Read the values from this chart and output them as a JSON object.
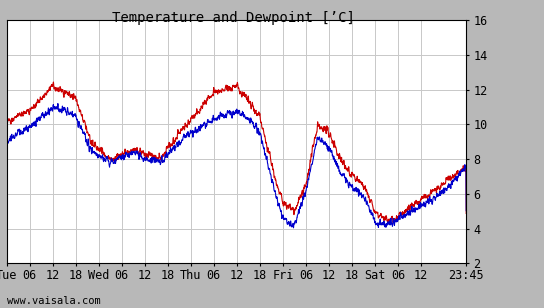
{
  "title": "Temperature and Dewpoint [’C]",
  "xlabel_bottom": "www.vaisala.com",
  "ylim": [
    2,
    16
  ],
  "yticks": [
    2,
    4,
    6,
    8,
    10,
    12,
    14,
    16
  ],
  "temp_color": "#cc0000",
  "dewp_color": "#0000cc",
  "fig_bg": "#b8b8b8",
  "plot_area_bg": "#ffffff",
  "grid_color": "#c8c8c8",
  "title_fontsize": 10,
  "tick_fontsize": 8.5,
  "line_width": 0.8,
  "xtick_labels": [
    "Tue",
    "06",
    "12",
    "18",
    "Wed",
    "06",
    "12",
    "18",
    "Thu",
    "06",
    "12",
    "18",
    "Fri",
    "06",
    "12",
    "18",
    "Sat",
    "06",
    "12",
    "23:45"
  ],
  "xtick_positions": [
    0,
    6,
    12,
    18,
    24,
    30,
    36,
    42,
    48,
    54,
    60,
    66,
    72,
    78,
    84,
    90,
    96,
    102,
    108,
    119.75
  ]
}
